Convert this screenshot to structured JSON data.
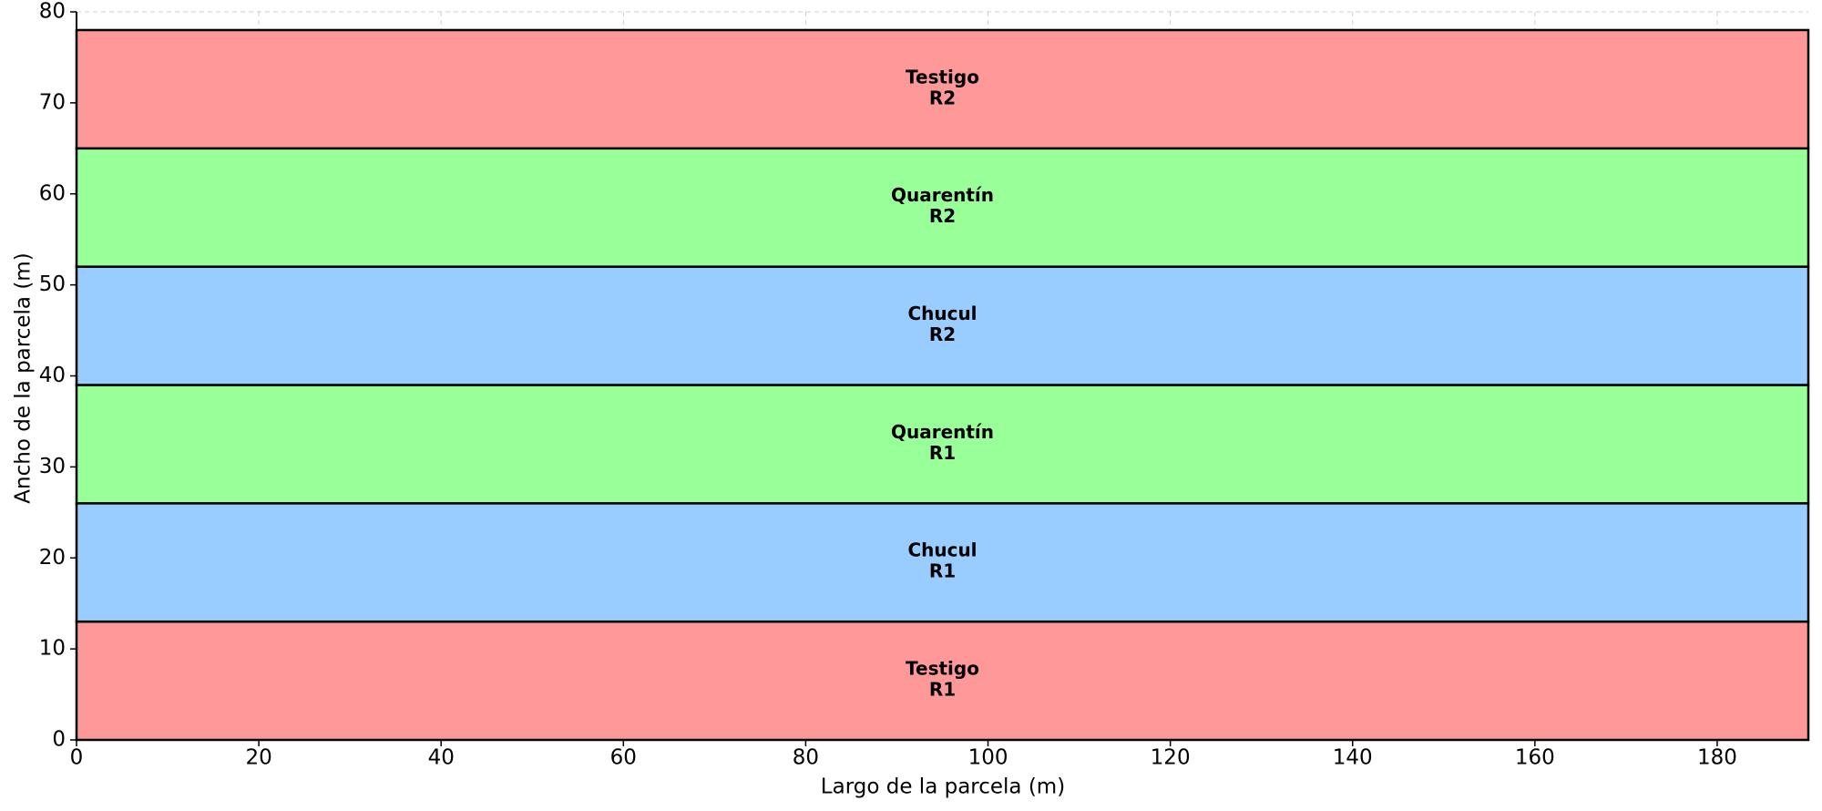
{
  "chart_data": {
    "type": "plot_layout",
    "xlabel": "Largo de la parcela (m)",
    "ylabel": "Ancho de la parcela (m)",
    "xlim": [
      0,
      190
    ],
    "ylim": [
      0,
      80
    ],
    "xticks": [
      0,
      20,
      40,
      60,
      80,
      100,
      120,
      140,
      160,
      180
    ],
    "yticks": [
      0,
      10,
      20,
      30,
      40,
      50,
      60,
      70,
      80
    ],
    "grid": true,
    "length": 190,
    "plots": [
      {
        "treatment": "Testigo",
        "replicate": "R1",
        "width": 13,
        "color": "#ff9999"
      },
      {
        "treatment": "Chucul",
        "replicate": "R1",
        "width": 13,
        "color": "#99ccff"
      },
      {
        "treatment": "Quarentín",
        "replicate": "R1",
        "width": 13,
        "color": "#99ff99"
      },
      {
        "treatment": "Chucul",
        "replicate": "R2",
        "width": 13,
        "color": "#99ccff"
      },
      {
        "treatment": "Quarentín",
        "replicate": "R2",
        "width": 13,
        "color": "#99ff99"
      },
      {
        "treatment": "Testigo",
        "replicate": "R2",
        "width": 13,
        "color": "#ff9999"
      }
    ]
  }
}
